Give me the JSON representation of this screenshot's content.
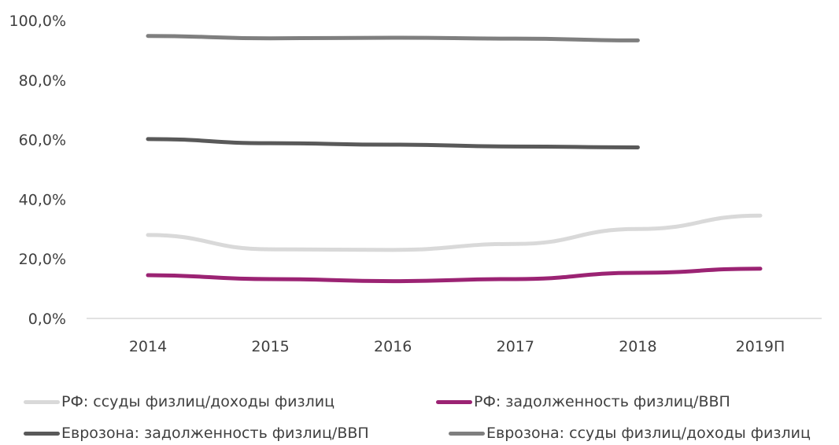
{
  "chart_data": {
    "type": "line",
    "categories": [
      "2014",
      "2015",
      "2016",
      "2017",
      "2018",
      "2019П"
    ],
    "ylim": [
      0,
      100
    ],
    "y_ticks": [
      "0,0%",
      "20,0%",
      "40,0%",
      "60,0%",
      "80,0%",
      "100,0%"
    ],
    "y_tick_values": [
      0,
      20,
      40,
      60,
      80,
      100
    ],
    "grid": false,
    "legend_position": "bottom",
    "series": [
      {
        "name": "РФ: ссуды физлиц/доходы физлиц",
        "color": "#d9d9d9",
        "values": [
          28.0,
          23.2,
          23.0,
          25.0,
          30.0,
          34.5
        ]
      },
      {
        "name": "РФ: задолженность физлиц/ВВП",
        "color": "#9b2373",
        "values": [
          14.5,
          13.2,
          12.5,
          13.2,
          15.3,
          16.7
        ]
      },
      {
        "name": "Еврозона: задолженность физлиц/ВВП",
        "color": "#595959",
        "values": [
          60.2,
          58.8,
          58.3,
          57.7,
          57.4,
          null
        ]
      },
      {
        "name": "Еврозона: ссуды физлиц/доходы физлиц",
        "color": "#7f7f7f",
        "values": [
          94.8,
          94.0,
          94.2,
          93.9,
          93.3,
          null
        ]
      }
    ]
  }
}
